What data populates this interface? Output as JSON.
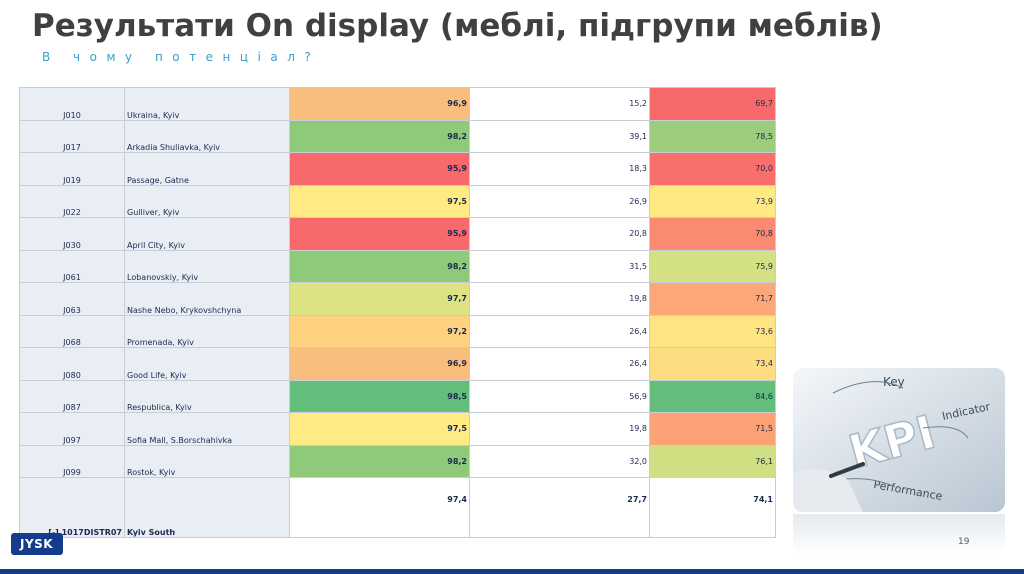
{
  "slide": {
    "title": "Результати On display (меблі, підгрупи меблів)",
    "subtitle": "В чому потенціал?",
    "page_number": "19",
    "logo_text": "JYSK"
  },
  "table": {
    "rows": [
      {
        "code": "J010",
        "name": "Ukraina, Kyiv",
        "v1": "96,9",
        "v2": "15,2",
        "v3": "69,7",
        "c1": "#f9bd7d",
        "c3": "#f8696b"
      },
      {
        "code": "J017",
        "name": "Arkadia Shuliavka, Kyiv",
        "v1": "98,2",
        "v2": "39,1",
        "v3": "78,5",
        "c1": "#8fc97a",
        "c3": "#9ccd7c"
      },
      {
        "code": "J019",
        "name": "Passage, Gatne",
        "v1": "95,9",
        "v2": "18,3",
        "v3": "70,0",
        "c1": "#f8696b",
        "c3": "#f96f6c"
      },
      {
        "code": "J022",
        "name": "Gulliver, Kyiv",
        "v1": "97,5",
        "v2": "26,9",
        "v3": "73,9",
        "c1": "#ffea84",
        "c3": "#fee983"
      },
      {
        "code": "J030",
        "name": "April City, Kyiv",
        "v1": "95,9",
        "v2": "20,8",
        "v3": "70,8",
        "c1": "#f8696b",
        "c3": "#fa8a72"
      },
      {
        "code": "J061",
        "name": "Lobanovskiy, Kyiv",
        "v1": "98,2",
        "v2": "31,5",
        "v3": "75,9",
        "c1": "#8fc97a",
        "c3": "#d3e182"
      },
      {
        "code": "J063",
        "name": "Nashe Nebo, Krykovshchyna",
        "v1": "97,7",
        "v2": "19,8",
        "v3": "71,7",
        "c1": "#dde283",
        "c3": "#fca777"
      },
      {
        "code": "J068",
        "name": "Promenada, Kyiv",
        "v1": "97,2",
        "v2": "26,4",
        "v3": "73,6",
        "c1": "#fed280",
        "c3": "#fee582"
      },
      {
        "code": "J080",
        "name": "Good Life, Kyiv",
        "v1": "96,9",
        "v2": "26,4",
        "v3": "73,4",
        "c1": "#f9bd7d",
        "c3": "#fedd81"
      },
      {
        "code": "J087",
        "name": "Respublica, Kyiv",
        "v1": "98,5",
        "v2": "56,9",
        "v3": "84,6",
        "c1": "#63be7b",
        "c3": "#63be7b"
      },
      {
        "code": "J097",
        "name": "Sofia Mall, S.Borschahivka",
        "v1": "97,5",
        "v2": "19,8",
        "v3": "71,5",
        "c1": "#ffea84",
        "c3": "#fba276"
      },
      {
        "code": "J099",
        "name": "Rostok, Kyiv",
        "v1": "98,2",
        "v2": "32,0",
        "v3": "76,1",
        "c1": "#8fc97a",
        "c3": "#cfe082"
      }
    ],
    "total": {
      "code": "[-] 1017DISTR07",
      "name": "Kyiv South",
      "v1": "97,4",
      "v2": "27,7",
      "v3": "74,1"
    }
  },
  "kpi_image": {
    "words": [
      "Key",
      "Indicator",
      "KPI",
      "Performance"
    ]
  }
}
